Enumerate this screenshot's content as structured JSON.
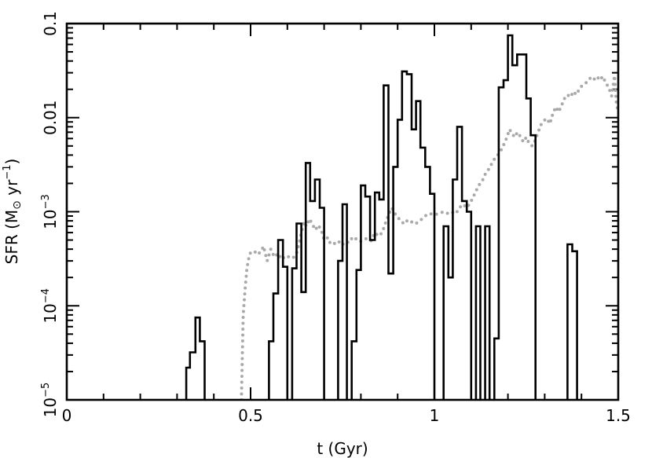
{
  "chart_data": {
    "type": "line",
    "title": "",
    "xlabel": "t (Gyr)",
    "ylabel_parts": [
      "SFR (M",
      "⊙",
      " yr",
      "−1",
      ")"
    ],
    "xlim": [
      0,
      1.5
    ],
    "ylim": [
      1e-05,
      0.1
    ],
    "yscale": "log",
    "grid": false,
    "legend": "none",
    "x_ticks": [
      {
        "value": 0,
        "label": "0"
      },
      {
        "value": 0.5,
        "label": "0.5"
      },
      {
        "value": 1,
        "label": "1"
      },
      {
        "value": 1.5,
        "label": "1.5"
      }
    ],
    "y_ticks": [
      {
        "value": 1e-05,
        "base": "10",
        "exp": "−5",
        "text": ""
      },
      {
        "value": 0.0001,
        "base": "10",
        "exp": "−4",
        "text": ""
      },
      {
        "value": 0.001,
        "base": "10",
        "exp": "−3",
        "text": ""
      },
      {
        "value": 0.01,
        "base": "",
        "exp": "",
        "text": "0.01"
      },
      {
        "value": 0.1,
        "base": "",
        "exp": "",
        "text": "0.1"
      }
    ],
    "series": [
      {
        "style": "solid-histogram",
        "color": "#000000",
        "bins": [
          [
            0.325,
            0.335,
            2.2e-05
          ],
          [
            0.335,
            0.35,
            3.2e-05
          ],
          [
            0.35,
            0.362,
            7.5e-05
          ],
          [
            0.362,
            0.375,
            4.2e-05
          ],
          [
            0.55,
            0.562,
            4.2e-05
          ],
          [
            0.562,
            0.575,
            0.000135
          ],
          [
            0.575,
            0.588,
            0.0005
          ],
          [
            0.588,
            0.6,
            0.00026
          ],
          [
            0.613,
            0.625,
            0.00025
          ],
          [
            0.625,
            0.638,
            0.00075
          ],
          [
            0.638,
            0.65,
            0.00014
          ],
          [
            0.65,
            0.662,
            0.0033
          ],
          [
            0.662,
            0.675,
            0.0013
          ],
          [
            0.675,
            0.688,
            0.0022
          ],
          [
            0.688,
            0.7,
            0.0011
          ],
          [
            0.738,
            0.75,
            0.0003
          ],
          [
            0.75,
            0.762,
            0.0012
          ],
          [
            0.775,
            0.788,
            4.2e-05
          ],
          [
            0.788,
            0.8,
            0.00024
          ],
          [
            0.8,
            0.812,
            0.0019
          ],
          [
            0.812,
            0.825,
            0.00145
          ],
          [
            0.825,
            0.838,
            0.0005
          ],
          [
            0.838,
            0.85,
            0.0016
          ],
          [
            0.85,
            0.862,
            0.00135
          ],
          [
            0.862,
            0.875,
            0.022
          ],
          [
            0.875,
            0.888,
            0.00022
          ],
          [
            0.888,
            0.9,
            0.003
          ],
          [
            0.9,
            0.912,
            0.0095
          ],
          [
            0.912,
            0.925,
            0.031
          ],
          [
            0.925,
            0.938,
            0.029
          ],
          [
            0.938,
            0.95,
            0.0075
          ],
          [
            0.95,
            0.962,
            0.015
          ],
          [
            0.962,
            0.975,
            0.0048
          ],
          [
            0.975,
            0.988,
            0.003
          ],
          [
            0.988,
            1.0,
            0.00155
          ],
          [
            1.025,
            1.038,
            0.0007
          ],
          [
            1.038,
            1.05,
            0.0002
          ],
          [
            1.05,
            1.062,
            0.0022
          ],
          [
            1.062,
            1.075,
            0.008
          ],
          [
            1.075,
            1.088,
            0.0013
          ],
          [
            1.088,
            1.1,
            0.001
          ],
          [
            1.113,
            1.125,
            0.0007
          ],
          [
            1.138,
            1.15,
            0.0007
          ],
          [
            1.163,
            1.175,
            4.5e-05
          ],
          [
            1.175,
            1.188,
            0.021
          ],
          [
            1.188,
            1.2,
            0.025
          ],
          [
            1.2,
            1.212,
            0.075
          ],
          [
            1.212,
            1.225,
            0.036
          ],
          [
            1.225,
            1.238,
            0.047
          ],
          [
            1.238,
            1.25,
            0.047
          ],
          [
            1.25,
            1.262,
            0.016
          ],
          [
            1.262,
            1.275,
            0.0065
          ],
          [
            1.362,
            1.375,
            0.00045
          ],
          [
            1.375,
            1.388,
            0.00038
          ]
        ]
      },
      {
        "style": "dotted-line",
        "color": "#aaaaaa",
        "points": [
          [
            0.475,
            1e-05
          ],
          [
            0.48,
            8e-05
          ],
          [
            0.485,
            0.00015
          ],
          [
            0.49,
            0.00025
          ],
          [
            0.495,
            0.00032
          ],
          [
            0.5,
            0.00037
          ],
          [
            0.51,
            0.00038
          ],
          [
            0.52,
            0.00035
          ],
          [
            0.53,
            0.00039
          ],
          [
            0.535,
            0.00043
          ],
          [
            0.545,
            0.0003
          ],
          [
            0.555,
            0.0004
          ],
          [
            0.565,
            0.00033
          ],
          [
            0.575,
            0.00036
          ],
          [
            0.585,
            0.00031
          ],
          [
            0.595,
            0.00034
          ],
          [
            0.605,
            0.00033
          ],
          [
            0.615,
            0.00032
          ],
          [
            0.625,
            0.00036
          ],
          [
            0.632,
            0.00046
          ],
          [
            0.638,
            0.0006
          ],
          [
            0.645,
            0.00078
          ],
          [
            0.652,
            0.0007
          ],
          [
            0.66,
            0.00084
          ],
          [
            0.668,
            0.00074
          ],
          [
            0.676,
            0.00064
          ],
          [
            0.684,
            0.00072
          ],
          [
            0.692,
            0.00064
          ],
          [
            0.7,
            0.0005
          ],
          [
            0.71,
            0.00053
          ],
          [
            0.718,
            0.00045
          ],
          [
            0.728,
            0.00046
          ],
          [
            0.738,
            0.00049
          ],
          [
            0.748,
            0.00044
          ],
          [
            0.758,
            0.00048
          ],
          [
            0.768,
            0.00047
          ],
          [
            0.778,
            0.00054
          ],
          [
            0.788,
            0.00051
          ],
          [
            0.798,
            0.00048
          ],
          [
            0.808,
            0.00051
          ],
          [
            0.818,
            0.00052
          ],
          [
            0.828,
            0.00049
          ],
          [
            0.838,
            0.0006
          ],
          [
            0.848,
            0.00055
          ],
          [
            0.858,
            0.0006
          ],
          [
            0.868,
            0.00078
          ],
          [
            0.876,
            0.00094
          ],
          [
            0.884,
            0.0011
          ],
          [
            0.892,
            0.00096
          ],
          [
            0.9,
            0.00088
          ],
          [
            0.908,
            0.0008
          ],
          [
            0.918,
            0.00074
          ],
          [
            0.928,
            0.00082
          ],
          [
            0.938,
            0.00078
          ],
          [
            0.948,
            0.00074
          ],
          [
            0.958,
            0.00079
          ],
          [
            0.968,
            0.00085
          ],
          [
            0.978,
            0.00092
          ],
          [
            0.988,
            0.00096
          ],
          [
            0.998,
            0.00092
          ],
          [
            1.008,
            0.00095
          ],
          [
            1.018,
            0.00098
          ],
          [
            1.028,
            0.001
          ],
          [
            1.038,
            0.00095
          ],
          [
            1.048,
            0.00099
          ],
          [
            1.058,
            0.00095
          ],
          [
            1.068,
            0.0011
          ],
          [
            1.078,
            0.0012
          ],
          [
            1.088,
            0.0011
          ],
          [
            1.098,
            0.00125
          ],
          [
            1.108,
            0.0015
          ],
          [
            1.116,
            0.00175
          ],
          [
            1.124,
            0.002
          ],
          [
            1.132,
            0.0022
          ],
          [
            1.14,
            0.0026
          ],
          [
            1.15,
            0.0029
          ],
          [
            1.16,
            0.0035
          ],
          [
            1.17,
            0.0039
          ],
          [
            1.18,
            0.0044
          ],
          [
            1.19,
            0.0053
          ],
          [
            1.198,
            0.0063
          ],
          [
            1.204,
            0.0075
          ],
          [
            1.21,
            0.0069
          ],
          [
            1.218,
            0.0062
          ],
          [
            1.226,
            0.007
          ],
          [
            1.234,
            0.0063
          ],
          [
            1.242,
            0.0055
          ],
          [
            1.25,
            0.0062
          ],
          [
            1.258,
            0.0053
          ],
          [
            1.266,
            0.005
          ],
          [
            1.274,
            0.0057
          ],
          [
            1.282,
            0.007
          ],
          [
            1.29,
            0.0084
          ],
          [
            1.298,
            0.0093
          ],
          [
            1.306,
            0.0098
          ],
          [
            1.314,
            0.0086
          ],
          [
            1.322,
            0.011
          ],
          [
            1.33,
            0.013
          ],
          [
            1.338,
            0.0115
          ],
          [
            1.346,
            0.0135
          ],
          [
            1.354,
            0.016
          ],
          [
            1.362,
            0.0175
          ],
          [
            1.37,
            0.0165
          ],
          [
            1.378,
            0.019
          ],
          [
            1.386,
            0.0175
          ],
          [
            1.394,
            0.02
          ],
          [
            1.402,
            0.022
          ],
          [
            1.41,
            0.023
          ],
          [
            1.418,
            0.0245
          ],
          [
            1.426,
            0.027
          ],
          [
            1.434,
            0.0255
          ],
          [
            1.442,
            0.0275
          ],
          [
            1.45,
            0.025
          ],
          [
            1.458,
            0.0275
          ],
          [
            1.466,
            0.0235
          ],
          [
            1.474,
            0.021
          ],
          [
            1.482,
            0.017
          ],
          [
            1.49,
            0.028
          ],
          [
            1.495,
            0.014
          ],
          [
            1.5,
            0.0115
          ]
        ]
      }
    ]
  }
}
